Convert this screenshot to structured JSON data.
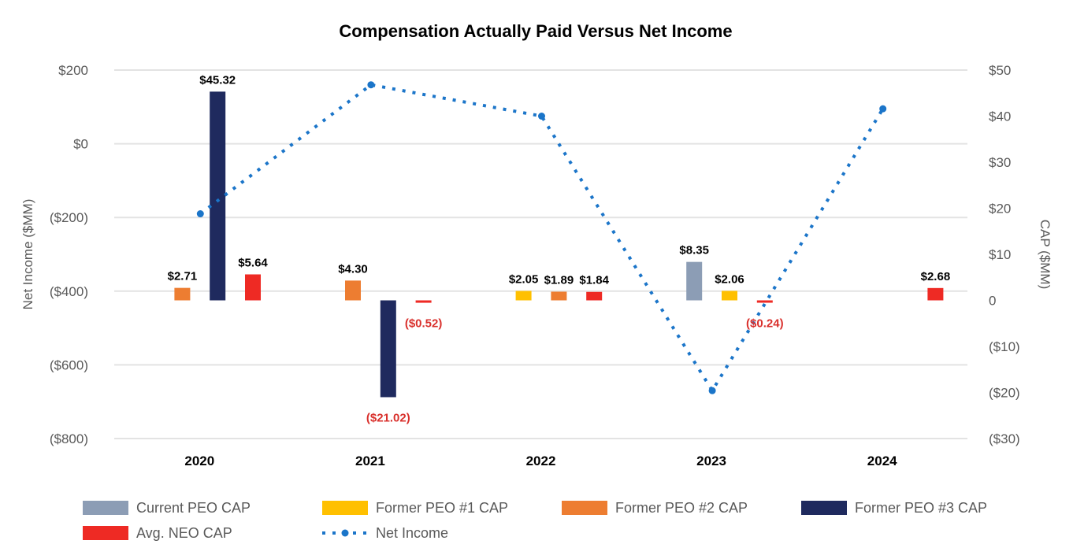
{
  "chart_data": {
    "type": "bar",
    "title": "Compensation Actually Paid Versus Net Income",
    "categories": [
      "2020",
      "2021",
      "2022",
      "2023",
      "2024"
    ],
    "ylabel_left": "Net Income ($MM)",
    "ylabel_right": "CAP ($MM)",
    "ylim_left": [
      -800,
      200
    ],
    "ylim_right": [
      -30,
      50
    ],
    "left_ticks": [
      {
        "value": 200,
        "label": "$200"
      },
      {
        "value": 0,
        "label": "$0"
      },
      {
        "value": -200,
        "label": "($200)"
      },
      {
        "value": -400,
        "label": "($400)"
      },
      {
        "value": -600,
        "label": "($600)"
      },
      {
        "value": -800,
        "label": "($800)"
      }
    ],
    "right_ticks": [
      {
        "value": 50,
        "label": "$50"
      },
      {
        "value": 40,
        "label": "$40"
      },
      {
        "value": 30,
        "label": "$30"
      },
      {
        "value": 20,
        "label": "$20"
      },
      {
        "value": 10,
        "label": "$10"
      },
      {
        "value": 0,
        "label": "0"
      },
      {
        "value": -10,
        "label": "($10)"
      },
      {
        "value": -20,
        "label": "($20)"
      },
      {
        "value": -30,
        "label": "($30)"
      }
    ],
    "grid": true,
    "legend_position": "bottom",
    "series": [
      {
        "name": "Current PEO CAP",
        "color": "#8c9db5",
        "values": [
          null,
          null,
          null,
          8.35,
          null
        ],
        "labels": [
          null,
          null,
          null,
          "$8.35",
          null
        ]
      },
      {
        "name": "Former PEO #1 CAP",
        "color": "#ffc000",
        "values": [
          null,
          null,
          2.05,
          2.06,
          null
        ],
        "labels": [
          null,
          null,
          "$2.05",
          "$2.06",
          null
        ]
      },
      {
        "name": "Former PEO #2 CAP",
        "color": "#ed7d31",
        "values": [
          2.71,
          4.3,
          1.89,
          null,
          null
        ],
        "labels": [
          "$2.71",
          "$4.30",
          "$1.89",
          null,
          null
        ]
      },
      {
        "name": "Former PEO #3 CAP",
        "color": "#1f2a5e",
        "values": [
          45.32,
          -21.02,
          null,
          null,
          null
        ],
        "labels": [
          "$45.32",
          "($21.02)",
          null,
          null,
          null
        ]
      },
      {
        "name": "Avg. NEO CAP",
        "color": "#ee2a24",
        "values": [
          5.64,
          -0.52,
          1.84,
          -0.24,
          2.68
        ],
        "labels": [
          "$5.64",
          "($0.52)",
          "$1.84",
          "($0.24)",
          "$2.68"
        ]
      }
    ],
    "line_series": {
      "name": "Net Income",
      "color": "#1b75c9",
      "axis": "left",
      "values": [
        -190,
        160,
        75,
        -670,
        95
      ]
    },
    "label_colors": {
      "positive": "#000000",
      "negative": "#d9302c"
    }
  }
}
